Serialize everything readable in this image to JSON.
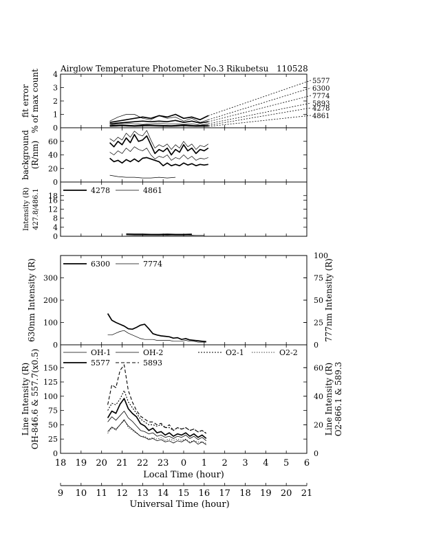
{
  "title": {
    "instrument": "Airglow Temperature Photometer No.3",
    "site": "Rikubetsu",
    "date": "110528"
  },
  "fit_legend": [
    "5577",
    "6300",
    "7774",
    "5893",
    "4278",
    "4861"
  ],
  "chart_data": [
    {
      "id": "fit-error",
      "type": "line",
      "ylabel": "fit error\n% of max count",
      "ylim": [
        0,
        4
      ],
      "yticks": [
        0,
        1,
        2,
        3,
        4
      ],
      "grid": false,
      "series": [
        {
          "name": "5577",
          "style": "thick",
          "x": [
            20.4,
            20.8,
            21.2,
            21.6,
            22.0,
            22.4,
            22.8,
            23.2,
            23.6,
            24.0,
            24.4,
            24.8,
            25.2
          ],
          "y": [
            0.4,
            0.5,
            0.6,
            0.7,
            0.8,
            0.7,
            0.9,
            0.8,
            1.0,
            0.7,
            0.8,
            0.6,
            0.9
          ]
        },
        {
          "name": "6300",
          "style": "thin",
          "x": [
            20.4,
            20.8,
            21.2,
            21.6,
            22.0,
            22.4,
            22.8,
            23.2,
            23.6,
            24.0,
            24.4,
            24.8,
            25.2
          ],
          "y": [
            0.5,
            0.8,
            1.0,
            1.0,
            0.7,
            0.6,
            0.9,
            0.7,
            0.8,
            0.5,
            0.7,
            0.4,
            0.6
          ]
        },
        {
          "name": "7774",
          "style": "thick",
          "x": [
            20.4,
            20.8,
            21.2,
            21.6,
            22.0,
            22.4,
            22.8,
            23.2,
            23.6,
            24.0,
            24.4,
            24.8,
            25.2
          ],
          "y": [
            0.3,
            0.35,
            0.4,
            0.45,
            0.5,
            0.45,
            0.5,
            0.45,
            0.55,
            0.4,
            0.5,
            0.35,
            0.45
          ]
        },
        {
          "name": "5893",
          "style": "thin",
          "x": [
            20.4,
            20.8,
            21.2,
            21.6,
            22.0,
            22.4,
            22.8,
            23.2,
            23.6,
            24.0,
            24.4,
            24.8,
            25.2
          ],
          "y": [
            0.2,
            0.3,
            0.35,
            0.3,
            0.25,
            0.3,
            0.35,
            0.3,
            0.3,
            0.25,
            0.3,
            0.2,
            0.3
          ]
        },
        {
          "name": "4278",
          "style": "thick",
          "x": [
            20.4,
            21.0,
            21.6,
            22.2,
            22.8,
            23.4,
            24.0,
            24.6,
            25.2
          ],
          "y": [
            0.15,
            0.2,
            0.15,
            0.2,
            0.18,
            0.15,
            0.2,
            0.15,
            0.18
          ]
        },
        {
          "name": "4861",
          "style": "thin",
          "x": [
            20.4,
            21.0,
            21.6,
            22.2,
            22.8,
            23.4,
            24.0,
            24.6,
            25.2
          ],
          "y": [
            0.1,
            0.12,
            0.1,
            0.12,
            0.1,
            0.1,
            0.12,
            0.1,
            0.1
          ]
        }
      ]
    },
    {
      "id": "background",
      "type": "line",
      "ylabel": "background\n(R/nm)",
      "ylim": [
        0,
        80
      ],
      "yticks": [
        0,
        20,
        40,
        60
      ],
      "grid": false,
      "series": [
        {
          "name": "5577",
          "style": "thick",
          "x": [
            20.4,
            20.6,
            20.8,
            21.0,
            21.2,
            21.4,
            21.6,
            21.8,
            22.0,
            22.2,
            22.4,
            22.6,
            22.8,
            23.0,
            23.2,
            23.4,
            23.6,
            23.8,
            24.0,
            24.2,
            24.4,
            24.6,
            24.8,
            25.0,
            25.2
          ],
          "y": [
            58,
            52,
            60,
            55,
            65,
            58,
            70,
            60,
            62,
            68,
            55,
            42,
            48,
            45,
            50,
            40,
            48,
            44,
            55,
            46,
            50,
            42,
            48,
            46,
            50
          ]
        },
        {
          "name": "6300",
          "style": "thin",
          "x": [
            20.4,
            20.6,
            20.8,
            21.0,
            21.2,
            21.4,
            21.6,
            21.8,
            22.0,
            22.2,
            22.4,
            22.6,
            22.8,
            23.0,
            23.2,
            23.4,
            23.6,
            23.8,
            24.0,
            24.2,
            24.4,
            24.6,
            24.8,
            25.0,
            25.2
          ],
          "y": [
            64,
            60,
            66,
            62,
            72,
            66,
            75,
            70,
            68,
            76,
            62,
            50,
            55,
            52,
            56,
            48,
            55,
            50,
            60,
            52,
            56,
            48,
            54,
            52,
            56
          ]
        },
        {
          "name": "7774",
          "style": "thin",
          "x": [
            20.4,
            20.6,
            20.8,
            21.0,
            21.2,
            21.4,
            21.6,
            21.8,
            22.0,
            22.2,
            22.4,
            22.6,
            22.8,
            23.0,
            23.2,
            23.4,
            23.6,
            23.8,
            24.0,
            24.2,
            24.4,
            24.6,
            24.8,
            25.0,
            25.2
          ],
          "y": [
            44,
            40,
            46,
            42,
            50,
            45,
            52,
            48,
            46,
            50,
            40,
            34,
            38,
            36,
            40,
            32,
            36,
            34,
            40,
            34,
            38,
            32,
            35,
            34,
            36
          ]
        },
        {
          "name": "4278",
          "style": "thick",
          "x": [
            20.4,
            20.6,
            20.8,
            21.0,
            21.2,
            21.4,
            21.6,
            21.8,
            22.0,
            22.2,
            22.4,
            22.6,
            22.8,
            23.0,
            23.2,
            23.4,
            23.6,
            23.8,
            24.0,
            24.2,
            24.4,
            24.6,
            24.8,
            25.0,
            25.2
          ],
          "y": [
            35,
            30,
            32,
            28,
            33,
            30,
            34,
            30,
            35,
            36,
            34,
            32,
            30,
            24,
            28,
            24,
            26,
            24,
            28,
            25,
            27,
            24,
            26,
            25,
            26
          ]
        },
        {
          "name": "4861",
          "style": "thin",
          "x": [
            20.4,
            20.8,
            21.2,
            21.6,
            22.0,
            22.4,
            22.8,
            23.2,
            23.6
          ],
          "y": [
            10,
            8,
            7,
            7,
            6,
            6,
            7,
            6,
            7
          ]
        }
      ]
    },
    {
      "id": "intensity-427-486",
      "type": "line",
      "ylabel": "Intensity (R)\n427.8/486.1",
      "ylim": [
        0,
        24
      ],
      "yticks": [
        0,
        4,
        8,
        12,
        16,
        18
      ],
      "grid": false,
      "series": [
        {
          "name": "4278",
          "style": "thick",
          "x": [
            21.2,
            21.6,
            22.0,
            22.4,
            22.8,
            23.2,
            23.6,
            24.0,
            24.4
          ],
          "y": [
            1.0,
            0.9,
            0.9,
            0.8,
            0.8,
            0.9,
            0.8,
            0.8,
            0.9
          ]
        },
        {
          "name": "4861",
          "style": "thin",
          "x": [
            21.2,
            21.6,
            22.0,
            22.4,
            22.8,
            23.2,
            23.6,
            24.0,
            24.4,
            24.6,
            25.0
          ],
          "y": [
            0.6,
            0.5,
            0.5,
            0.5,
            0.4,
            0.5,
            0.4,
            0.4,
            0.5,
            0.4,
            0.4
          ]
        }
      ]
    },
    {
      "id": "intensity-630-777",
      "type": "line",
      "ylabel": "630nm Intensity (R)",
      "y2label": "777nm Intensity (R)",
      "ylim": [
        0,
        400
      ],
      "yticks": [
        0,
        100,
        200,
        300
      ],
      "y2lim": [
        0,
        100
      ],
      "y2ticks": [
        0,
        25,
        50,
        75,
        100
      ],
      "grid": false,
      "series": [
        {
          "name": "6300",
          "style": "thick",
          "axis": "left",
          "x": [
            20.3,
            20.5,
            20.7,
            20.9,
            21.1,
            21.3,
            21.5,
            21.7,
            21.9,
            22.1,
            22.3,
            22.5,
            22.7,
            22.9,
            23.1,
            23.3,
            23.5,
            23.7,
            23.9,
            24.1,
            24.3,
            24.5,
            24.7,
            24.9,
            25.1
          ],
          "y": [
            140,
            110,
            100,
            92,
            84,
            72,
            70,
            78,
            88,
            92,
            72,
            50,
            44,
            40,
            38,
            36,
            30,
            32,
            24,
            28,
            22,
            20,
            18,
            16,
            14
          ]
        },
        {
          "name": "7774",
          "style": "thin",
          "axis": "right",
          "x": [
            20.3,
            20.5,
            20.7,
            20.9,
            21.1,
            21.3,
            21.5,
            21.7,
            21.9,
            22.1,
            22.3,
            22.5,
            22.7,
            22.9,
            23.1,
            23.3,
            23.5,
            23.7,
            23.9,
            24.1,
            24.3,
            24.5,
            24.7,
            24.9,
            25.1
          ],
          "y": [
            11,
            11,
            13,
            15,
            16,
            13,
            11,
            9,
            7,
            6,
            6,
            6,
            5,
            5,
            5,
            5,
            4,
            4,
            4,
            5,
            4,
            4,
            3,
            3,
            3
          ]
        }
      ]
    },
    {
      "id": "line-intensity",
      "type": "line",
      "ylabel": "Line Intensity (R)\nOH-846.6 & 557.7(x0.5)",
      "y2label": "Line Intensity (R)\nO2-866.1 & 589.3",
      "xlabel": "Local Time (hour)",
      "xlim": [
        18,
        30
      ],
      "xticks": [
        18,
        19,
        20,
        21,
        22,
        23,
        24,
        25,
        26,
        27,
        28,
        29,
        30
      ],
      "xticklabels": [
        "18",
        "19",
        "20",
        "21",
        "22",
        "23",
        "0",
        "1",
        "2",
        "3",
        "4",
        "5",
        "6"
      ],
      "ylim": [
        0,
        190
      ],
      "yticks": [
        0,
        25,
        50,
        75,
        100,
        125,
        150
      ],
      "y2lim": [
        0,
        76
      ],
      "y2ticks": [
        0,
        20,
        40,
        60
      ],
      "grid": false,
      "series": [
        {
          "name": "OH-1",
          "style": "solid-thin",
          "axis": "left",
          "x": [
            20.3,
            20.5,
            20.7,
            20.9,
            21.1,
            21.3,
            21.5,
            21.7,
            21.9,
            22.1,
            22.3,
            22.5,
            22.7,
            22.9,
            23.1,
            23.3,
            23.5,
            23.7,
            23.9,
            24.1,
            24.3,
            24.5,
            24.7,
            24.9,
            25.1
          ],
          "y": [
            55,
            64,
            58,
            66,
            74,
            62,
            56,
            48,
            40,
            38,
            34,
            36,
            30,
            32,
            28,
            30,
            26,
            30,
            28,
            32,
            26,
            30,
            24,
            28,
            22
          ]
        },
        {
          "name": "OH-2",
          "style": "solid-thin",
          "axis": "left",
          "x": [
            20.3,
            20.5,
            20.7,
            20.9,
            21.1,
            21.3,
            21.5,
            21.7,
            21.9,
            22.1,
            22.3,
            22.5,
            22.7,
            22.9,
            23.1,
            23.3,
            23.5,
            23.7,
            23.9,
            24.1,
            24.3,
            24.5,
            24.7,
            24.9,
            25.1
          ],
          "y": [
            38,
            46,
            42,
            50,
            58,
            48,
            42,
            36,
            30,
            28,
            24,
            26,
            22,
            24,
            20,
            22,
            18,
            22,
            20,
            24,
            18,
            22,
            16,
            20,
            15
          ]
        },
        {
          "name": "O2-1",
          "style": "dotted",
          "axis": "right",
          "x": [
            20.3,
            20.5,
            20.7,
            20.9,
            21.1,
            21.3,
            21.5,
            21.7,
            21.9,
            22.1,
            22.3,
            22.5,
            22.7,
            22.9,
            23.1,
            23.3,
            23.5,
            23.7,
            23.9,
            24.1,
            24.3,
            24.5,
            24.7,
            24.9,
            25.1
          ],
          "y": [
            30,
            35,
            34,
            38,
            44,
            36,
            32,
            28,
            24,
            22,
            20,
            20,
            19,
            20,
            18,
            18,
            16,
            18,
            17,
            18,
            16,
            17,
            15,
            16,
            14
          ]
        },
        {
          "name": "O2-2",
          "style": "dotted-thin",
          "axis": "right",
          "x": [
            20.3,
            20.5,
            20.7,
            20.9,
            21.1,
            21.3,
            21.5,
            21.7,
            21.9,
            22.1,
            22.3,
            22.5,
            22.7,
            22.9,
            23.1,
            23.3,
            23.5,
            23.7,
            23.9,
            24.1,
            24.3,
            24.5,
            24.7,
            24.9,
            25.1
          ],
          "y": [
            14,
            18,
            16,
            20,
            24,
            18,
            16,
            14,
            12,
            12,
            10,
            11,
            10,
            11,
            9,
            10,
            9,
            10,
            9,
            10,
            8,
            9,
            8,
            8,
            7
          ]
        },
        {
          "name": "5577",
          "style": "thick",
          "axis": "left",
          "x": [
            20.3,
            20.5,
            20.7,
            20.9,
            21.1,
            21.3,
            21.5,
            21.7,
            21.9,
            22.1,
            22.3,
            22.5,
            22.7,
            22.9,
            23.1,
            23.3,
            23.5,
            23.7,
            23.9,
            24.1,
            24.3,
            24.5,
            24.7,
            24.9,
            25.1
          ],
          "y": [
            62,
            74,
            70,
            86,
            96,
            78,
            70,
            64,
            52,
            48,
            40,
            44,
            36,
            38,
            32,
            36,
            30,
            34,
            32,
            36,
            30,
            34,
            28,
            32,
            26
          ]
        },
        {
          "name": "5893",
          "style": "dashed",
          "axis": "right",
          "x": [
            20.3,
            20.5,
            20.7,
            20.9,
            21.1,
            21.3,
            21.5,
            21.7,
            21.9,
            22.1,
            22.3,
            22.5,
            22.7,
            22.9,
            23.1,
            23.3,
            23.5,
            23.7,
            23.9,
            24.1,
            24.3,
            24.5,
            24.7,
            24.9,
            25.1
          ],
          "y": [
            34,
            48,
            46,
            58,
            62,
            44,
            36,
            30,
            26,
            24,
            22,
            22,
            20,
            21,
            18,
            20,
            16,
            18,
            17,
            18,
            16,
            17,
            15,
            16,
            14
          ]
        }
      ]
    },
    {
      "id": "universal-time-axis",
      "type": "axis",
      "xlabel": "Universal Time (hour)",
      "xlim": [
        9,
        21
      ],
      "xticks": [
        9,
        10,
        11,
        12,
        13,
        14,
        15,
        16,
        17,
        18,
        19,
        20,
        21
      ],
      "xticklabels": [
        "9",
        "10",
        "11",
        "12",
        "13",
        "14",
        "15",
        "16",
        "17",
        "18",
        "19",
        "20",
        "21"
      ]
    }
  ]
}
